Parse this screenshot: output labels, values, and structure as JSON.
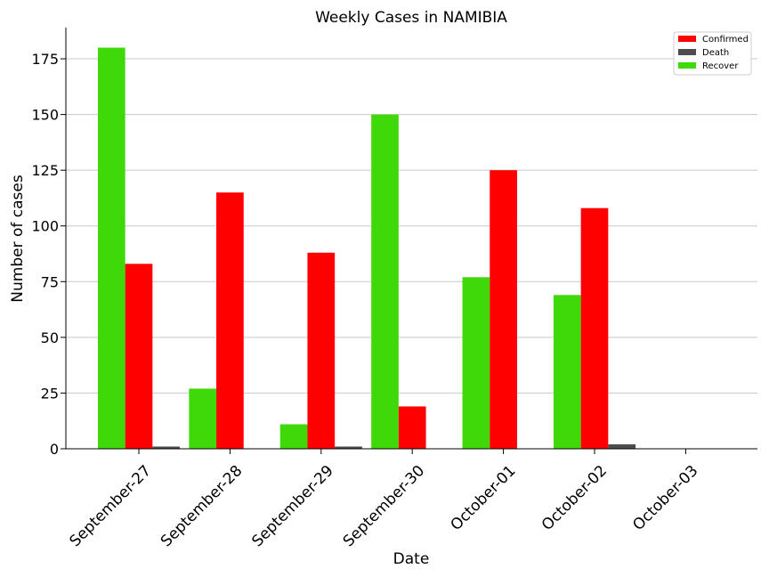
{
  "chart_data": {
    "type": "bar",
    "title": "Weekly Cases in NAMIBIA",
    "xlabel": "Date",
    "ylabel": "Number of cases",
    "categories": [
      "September-27",
      "September-28",
      "September-29",
      "September-30",
      "October-01",
      "October-02",
      "October-03"
    ],
    "series": [
      {
        "name": "Recover",
        "color": "#3fd90a",
        "values": [
          180,
          27,
          11,
          150,
          77,
          69,
          0
        ]
      },
      {
        "name": "Confirmed",
        "color": "#ff0000",
        "values": [
          83,
          115,
          88,
          19,
          125,
          108,
          0
        ]
      },
      {
        "name": "Death",
        "color": "#4d4d4d",
        "values": [
          1,
          0,
          1,
          0,
          0,
          2,
          0
        ]
      }
    ],
    "legend_order": [
      "Confirmed",
      "Death",
      "Recover"
    ],
    "yticks": [
      0,
      25,
      50,
      75,
      100,
      125,
      150,
      175
    ],
    "ylim": [
      0,
      189
    ],
    "grid": "horizontal",
    "legend_position": "top-right"
  }
}
